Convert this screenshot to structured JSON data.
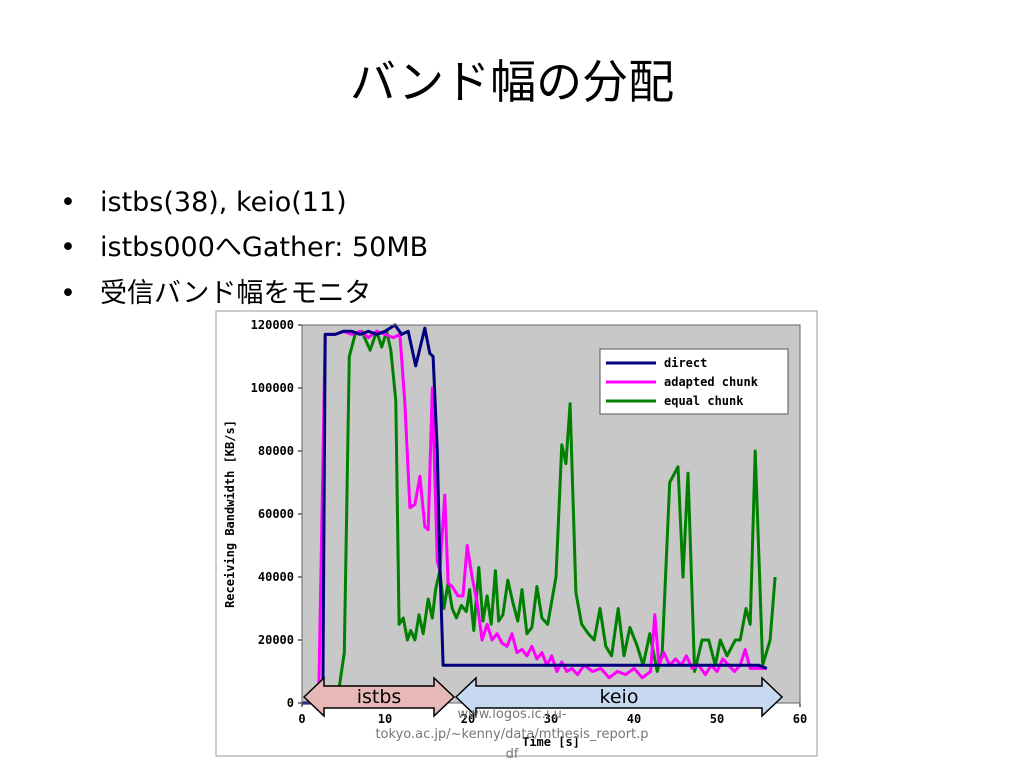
{
  "slide": {
    "title": "バンド幅の分配",
    "bullets": [
      "istbs(38), keio(11)",
      "istbs000へGather: 50MB",
      "受信バンド幅をモニタ"
    ],
    "source": [
      "www.logos.ic.i.u-",
      "tokyo.ac.jp/~kenny/data/mthesis_report.p",
      "df"
    ]
  },
  "chart_data": {
    "type": "line",
    "xlabel": "Time [s]",
    "ylabel": "Receiving Bandwidth [KB/s]",
    "xlim": [
      0,
      60
    ],
    "xticks": [
      0,
      10,
      20,
      30,
      40,
      50,
      60
    ],
    "ylim": [
      0,
      120000
    ],
    "yticks": [
      0,
      20000,
      40000,
      60000,
      80000,
      100000,
      120000
    ],
    "legend": "upper right",
    "annotations": [
      "istbs",
      "keio"
    ],
    "series": [
      {
        "name": "direct",
        "color": "#000080",
        "x": [
          0,
          2.5,
          2.8,
          4,
          5,
          6,
          7,
          8,
          9,
          10,
          11.2,
          12,
          12.8,
          13.7,
          14.8,
          15.4,
          15.8,
          16.3,
          16.6,
          17,
          20,
          30,
          40,
          50,
          55,
          56
        ],
        "values": [
          0,
          0,
          117000,
          117000,
          118000,
          118000,
          117000,
          118000,
          117000,
          118000,
          120000,
          117000,
          118000,
          107000,
          119000,
          111000,
          110000,
          80000,
          45000,
          12000,
          12000,
          12000,
          12000,
          12000,
          12000,
          11000
        ]
      },
      {
        "name": "adapted chunk",
        "color": "#ff00ff",
        "x": [
          0,
          2.0,
          2.8,
          4,
          5,
          6,
          7,
          8,
          9,
          10,
          11,
          11.8,
          12.4,
          13,
          13.6,
          14.2,
          14.8,
          15.2,
          15.7,
          16.3,
          16.6,
          17.2,
          17.6,
          18.1,
          18.8,
          19.4,
          19.9,
          20.5,
          21.1,
          21.7,
          22.3,
          22.9,
          23.5,
          24.1,
          24.7,
          25.3,
          25.9,
          26.5,
          27.1,
          27.7,
          28.3,
          28.9,
          29.5,
          30.1,
          30.7,
          31.3,
          31.9,
          32.5,
          33.2,
          34,
          35,
          36,
          37,
          38,
          39,
          40,
          41,
          42,
          42.5,
          43,
          43.6,
          44.3,
          45,
          45.7,
          46.3,
          47,
          47.8,
          48.6,
          49.3,
          50,
          50.7,
          51.4,
          52.1,
          52.8,
          53.4,
          54,
          55,
          56
        ],
        "values": [
          0,
          0,
          117000,
          117000,
          118000,
          117000,
          118000,
          116000,
          118000,
          117000,
          116000,
          117000,
          95000,
          62000,
          63000,
          72000,
          56000,
          55000,
          100000,
          45000,
          42000,
          66000,
          38000,
          37000,
          34000,
          34000,
          50000,
          40000,
          32000,
          20000,
          25000,
          20000,
          22000,
          19000,
          18000,
          22000,
          16000,
          17000,
          15000,
          18000,
          14000,
          16000,
          12000,
          15000,
          10000,
          13000,
          10000,
          11000,
          9000,
          12000,
          10000,
          11000,
          8000,
          10000,
          9000,
          11000,
          8000,
          10000,
          28000,
          12000,
          16000,
          12000,
          14000,
          12000,
          15000,
          11000,
          12000,
          9000,
          12000,
          10000,
          14000,
          12000,
          10000,
          12000,
          17000,
          11000,
          11000,
          11000
        ]
      },
      {
        "name": "equal chunk",
        "color": "#008000",
        "x": [
          0,
          4.2,
          5.1,
          5.7,
          6.4,
          7.2,
          8.2,
          9.0,
          9.6,
          10.2,
          10.7,
          11.3,
          11.7,
          12.2,
          12.7,
          13.1,
          13.6,
          14.1,
          14.6,
          15.2,
          15.7,
          16.1,
          16.6,
          17.1,
          17.6,
          18.1,
          18.6,
          19.2,
          19.8,
          20.2,
          20.7,
          21.3,
          21.8,
          22.3,
          22.8,
          23.3,
          23.7,
          24.2,
          24.8,
          25.4,
          26.0,
          26.5,
          27.1,
          27.7,
          28.3,
          28.9,
          29.6,
          30.6,
          31.3,
          31.8,
          32.3,
          33.0,
          33.7,
          34.5,
          35.2,
          35.9,
          36.6,
          37.3,
          38.1,
          38.8,
          39.5,
          40.4,
          41.1,
          41.9,
          42.8,
          43.4,
          44.3,
          45.3,
          45.9,
          46.5,
          47.3,
          48.2,
          49.0,
          49.8,
          50.4,
          51.2,
          52.2,
          52.8,
          53.5,
          54.0,
          54.6,
          55.5,
          56.4,
          57.0
        ],
        "values": [
          0,
          0,
          16000,
          110000,
          117000,
          118000,
          112000,
          118000,
          113000,
          118000,
          112000,
          96000,
          25000,
          27000,
          20000,
          23000,
          20000,
          28000,
          22000,
          33000,
          27000,
          36000,
          42000,
          30000,
          38000,
          30000,
          27000,
          31000,
          29000,
          36000,
          23000,
          43000,
          26000,
          34000,
          25000,
          42000,
          26000,
          28000,
          39000,
          32000,
          26000,
          36000,
          22000,
          24000,
          37000,
          27000,
          25000,
          40000,
          82000,
          76000,
          95000,
          35000,
          25000,
          22000,
          20000,
          30000,
          18000,
          15000,
          30000,
          15000,
          24000,
          18000,
          12000,
          22000,
          10000,
          16000,
          70000,
          75000,
          40000,
          73000,
          10000,
          20000,
          20000,
          12000,
          20000,
          15000,
          20000,
          20000,
          30000,
          25000,
          80000,
          12000,
          20000,
          40000
        ]
      }
    ]
  }
}
